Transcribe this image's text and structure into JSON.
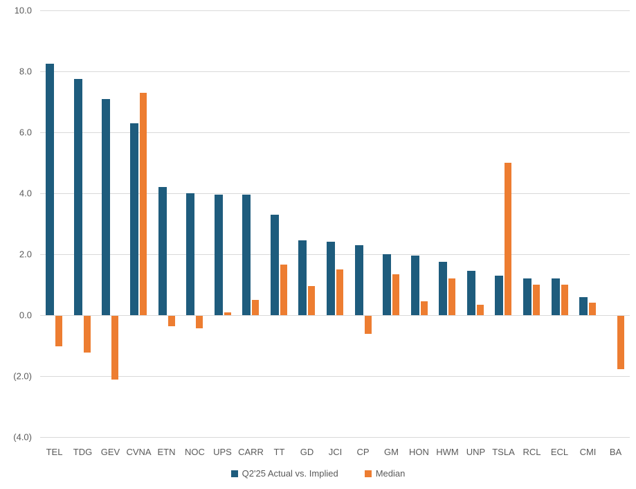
{
  "chart_data": {
    "type": "bar",
    "title": "",
    "xlabel": "",
    "ylabel": "",
    "ylim": [
      -4.0,
      10.0
    ],
    "grid": true,
    "legend_position": "bottom",
    "categories": [
      "TEL",
      "TDG",
      "GEV",
      "CVNA",
      "ETN",
      "NOC",
      "UPS",
      "CARR",
      "TT",
      "GD",
      "JCI",
      "CP",
      "GM",
      "HON",
      "HWM",
      "UNP",
      "TSLA",
      "RCL",
      "ECL",
      "CMI",
      "BA"
    ],
    "series": [
      {
        "name": "Q2'25 Actual vs. Implied",
        "color": "#1e5c7d",
        "values": [
          8.25,
          7.75,
          7.1,
          6.3,
          4.2,
          4.0,
          3.95,
          3.95,
          3.3,
          2.45,
          2.4,
          2.3,
          2.0,
          1.95,
          1.75,
          1.45,
          1.3,
          1.2,
          1.2,
          0.6,
          0.0
        ]
      },
      {
        "name": "Median",
        "color": "#ed7d31",
        "values": [
          -1.0,
          -1.2,
          -2.1,
          7.3,
          -0.35,
          -0.4,
          0.1,
          0.5,
          1.65,
          0.95,
          1.5,
          -0.6,
          1.35,
          0.45,
          1.2,
          0.35,
          5.0,
          1.0,
          1.0,
          0.4,
          -1.75
        ]
      }
    ],
    "yticks": [
      {
        "value": 10,
        "label": "10.0"
      },
      {
        "value": 8,
        "label": "8.0"
      },
      {
        "value": 6,
        "label": "6.0"
      },
      {
        "value": 4,
        "label": "4.0"
      },
      {
        "value": 2,
        "label": "2.0"
      },
      {
        "value": 0,
        "label": "0.0"
      },
      {
        "value": -2,
        "label": "(2.0)"
      },
      {
        "value": -4,
        "label": "(4.0)"
      }
    ]
  },
  "legend": {
    "series1_label": "Q2'25 Actual vs. Implied",
    "series2_label": "Median"
  },
  "colors": {
    "actual": "#1e5c7d",
    "median": "#ed7d31",
    "gridline": "#d9d9d9",
    "text": "#595959",
    "background": "#ffffff"
  }
}
